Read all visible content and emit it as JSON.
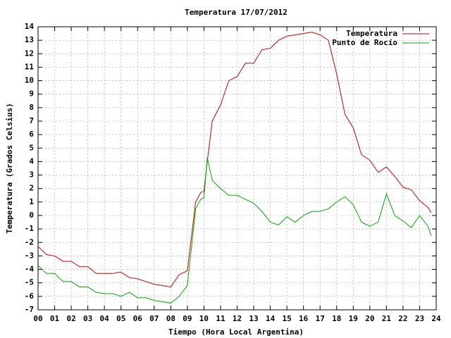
{
  "chart_data": {
    "type": "line",
    "title": "Temperatura 17/07/2012",
    "x_label": "Tiempo (Hora Local Argentina)",
    "y_label": "Temperatura (Grados Celsius)",
    "x": [
      0,
      0.5,
      1,
      1.5,
      2,
      2.5,
      3,
      3.5,
      4,
      4.5,
      5,
      5.5,
      6,
      6.5,
      7,
      7.5,
      8,
      8.5,
      9,
      9.5,
      9.8,
      10,
      10.2,
      10.5,
      11,
      11.5,
      12,
      12.5,
      13,
      13.5,
      14,
      14.5,
      15,
      15.5,
      16,
      16.5,
      17,
      17.5,
      18,
      18.5,
      19,
      19.5,
      20,
      20.5,
      21,
      21.5,
      22,
      22.5,
      23,
      23.5,
      23.7
    ],
    "series": [
      {
        "name": "Temperatura",
        "color": "#cc0000",
        "values": [
          -2.3,
          -2.9,
          -3.0,
          -3.4,
          -3.4,
          -3.8,
          -3.8,
          -4.3,
          -4.3,
          -4.3,
          -4.2,
          -4.6,
          -4.7,
          -4.9,
          -5.1,
          -5.2,
          -5.3,
          -4.4,
          -4.1,
          1.0,
          1.7,
          1.8,
          4.0,
          7.0,
          8.2,
          10.0,
          10.3,
          11.3,
          11.3,
          12.3,
          12.4,
          13.0,
          13.3,
          13.4,
          13.5,
          13.6,
          13.4,
          13.0,
          10.5,
          7.5,
          6.5,
          4.5,
          4.1,
          3.2,
          3.6,
          2.9,
          2.1,
          1.9,
          1.1,
          0.6,
          0.2
        ]
      },
      {
        "name": "Punto de Rocío",
        "color": "#00aa00",
        "values": [
          -3.7,
          -4.3,
          -4.3,
          -4.9,
          -4.9,
          -5.3,
          -5.3,
          -5.7,
          -5.8,
          -5.8,
          -6.0,
          -5.7,
          -6.1,
          -6.1,
          -6.3,
          -6.4,
          -6.5,
          -6.0,
          -5.2,
          0.5,
          1.2,
          1.3,
          4.3,
          2.6,
          2.0,
          1.5,
          1.5,
          1.2,
          0.9,
          0.3,
          -0.5,
          -0.7,
          -0.1,
          -0.5,
          0.0,
          0.3,
          0.3,
          0.5,
          1.0,
          1.4,
          0.8,
          -0.5,
          -0.8,
          -0.5,
          1.6,
          0.0,
          -0.4,
          -0.9,
          0.0,
          -0.8,
          -1.5
        ]
      }
    ],
    "xlim": [
      0,
      24
    ],
    "xticks": [
      {
        "value": 0,
        "label": "00"
      },
      {
        "value": 1,
        "label": "01"
      },
      {
        "value": 2,
        "label": "02"
      },
      {
        "value": 3,
        "label": "03"
      },
      {
        "value": 4,
        "label": "04"
      },
      {
        "value": 5,
        "label": "05"
      },
      {
        "value": 6,
        "label": "06"
      },
      {
        "value": 7,
        "label": "07"
      },
      {
        "value": 8,
        "label": "08"
      },
      {
        "value": 9,
        "label": "09"
      },
      10,
      11,
      12,
      13,
      14,
      15,
      16,
      17,
      18,
      19,
      20,
      21,
      22,
      23,
      24
    ],
    "ylim": [
      -7,
      14
    ],
    "yticks": [
      -7,
      -6,
      -5,
      -4,
      -3,
      -2,
      -1,
      0,
      1,
      2,
      3,
      4,
      5,
      6,
      7,
      8,
      9,
      10,
      11,
      12,
      13,
      14
    ],
    "grid": true,
    "legend": "top-right"
  }
}
